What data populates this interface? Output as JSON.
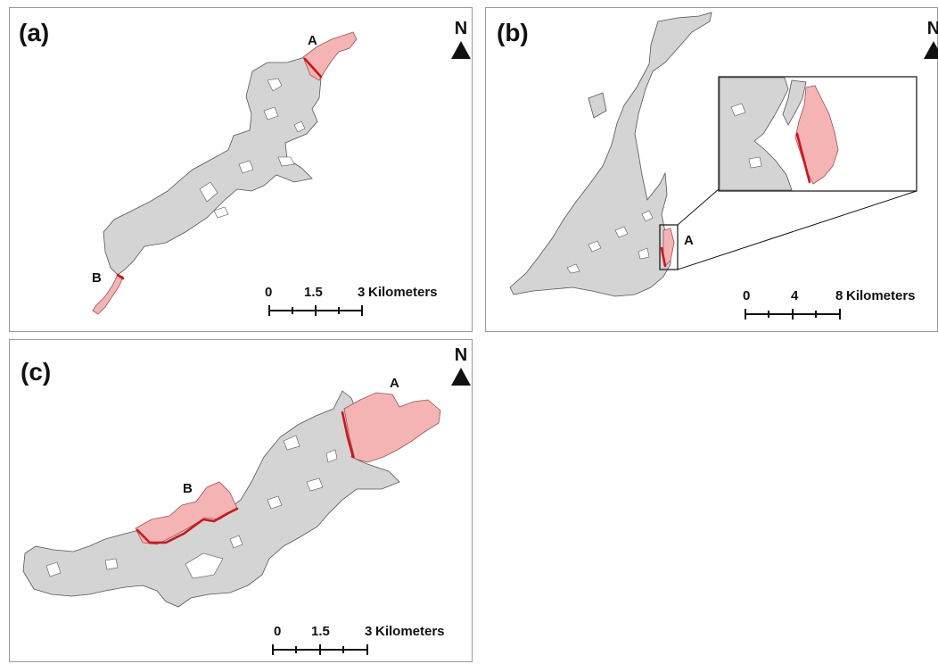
{
  "panels": {
    "a": {
      "label": "(a)",
      "north": "N",
      "site_a": "A",
      "site_b": "B",
      "scale": {
        "ticks": [
          "0",
          "1.5",
          "3"
        ],
        "unit": "Kilometers"
      }
    },
    "b": {
      "label": "(b)",
      "north": "N",
      "site_a": "A",
      "scale": {
        "ticks": [
          "0",
          "4",
          "8"
        ],
        "unit": "Kilometers"
      }
    },
    "c": {
      "label": "(c)",
      "north": "N",
      "site_a": "A",
      "site_b": "B",
      "scale": {
        "ticks": [
          "0",
          "1.5",
          "3"
        ],
        "unit": "Kilometers"
      }
    }
  },
  "colors": {
    "lake": "#d4d4d4",
    "flooded_area": "#f4b4b4",
    "dam_line": "#d0141b"
  }
}
